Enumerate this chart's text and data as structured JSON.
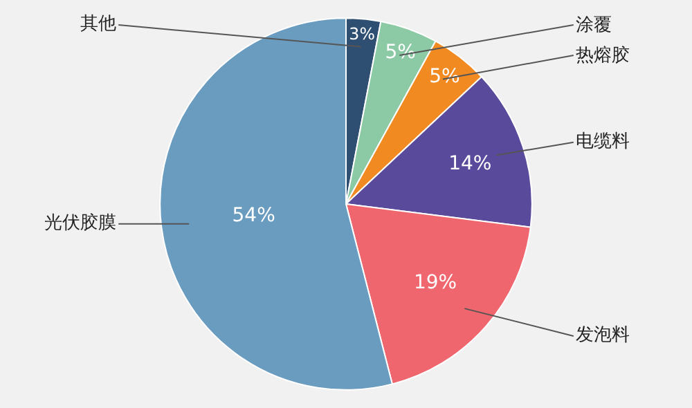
{
  "chart_data": {
    "type": "pie",
    "categories": [
      "其他",
      "涂覆",
      "热熔胶",
      "电缆料",
      "发泡料",
      "光伏胶膜"
    ],
    "values": [
      3,
      5,
      5,
      14,
      19,
      54
    ],
    "colors": [
      "#2f4f72",
      "#8ccaa6",
      "#f28a22",
      "#5a4a9c",
      "#f0666e",
      "#6a9cc0"
    ],
    "value_labels": [
      "3%",
      "5%",
      "5%",
      "14%",
      "19%",
      "54%"
    ],
    "legend": false
  }
}
